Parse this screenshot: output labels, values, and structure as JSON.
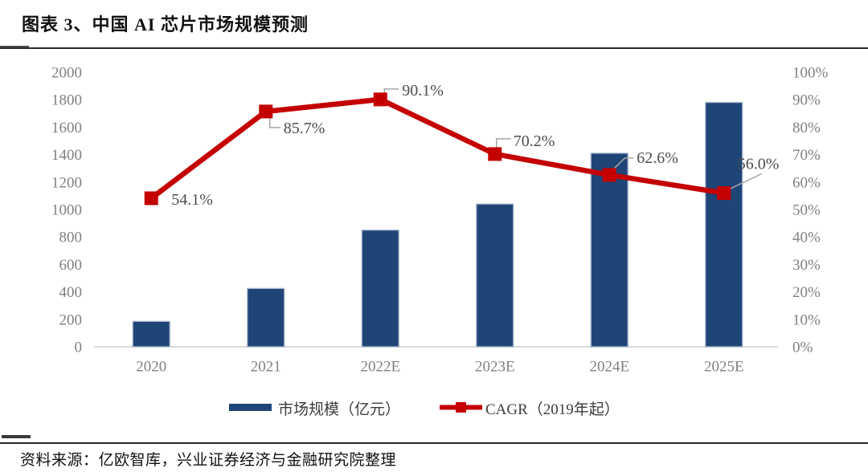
{
  "header": {
    "title": "图表 3、中国 AI 芯片市场规模预测"
  },
  "footer": {
    "source": "资料来源：亿欧智库，兴业证券经济与金融研究院整理"
  },
  "legend": {
    "bar_label": "市场规模（亿元）",
    "line_label": "CAGR（2019年起）"
  },
  "colors": {
    "bar": "#1F4577",
    "bar_border": "#A9B7D0",
    "line": "#C40000",
    "axis_text": "#808080",
    "data_label": "#4D4D4D",
    "axis_line": "#D9D9D9",
    "leader": "#A6A6A6"
  },
  "chart_data": {
    "type": "combo",
    "title": "图表 3、中国 AI 芯片市场规模预测",
    "categories": [
      "2020",
      "2021",
      "2022E",
      "2023E",
      "2024E",
      "2025E"
    ],
    "series": [
      {
        "name": "市场规模（亿元）",
        "type": "bar",
        "axis": "left",
        "values": [
          185,
          425,
          850,
          1040,
          1410,
          1780
        ]
      },
      {
        "name": "CAGR（2019年起）",
        "type": "line",
        "axis": "right",
        "values": [
          54.1,
          85.7,
          90.1,
          70.2,
          62.6,
          56.0
        ],
        "labels": [
          "54.1%",
          "85.7%",
          "90.1%",
          "70.2%",
          "62.6%",
          "56.0%"
        ]
      }
    ],
    "y_left": {
      "min": 0,
      "max": 2000,
      "ticks": [
        0,
        200,
        400,
        600,
        800,
        1000,
        1200,
        1400,
        1600,
        1800,
        2000
      ]
    },
    "y_right": {
      "min": "0%",
      "max": "100%",
      "ticks": [
        "0%",
        "10%",
        "20%",
        "30%",
        "40%",
        "50%",
        "60%",
        "70%",
        "80%",
        "90%",
        "100%"
      ]
    },
    "grid": false,
    "legend_position": "bottom"
  }
}
